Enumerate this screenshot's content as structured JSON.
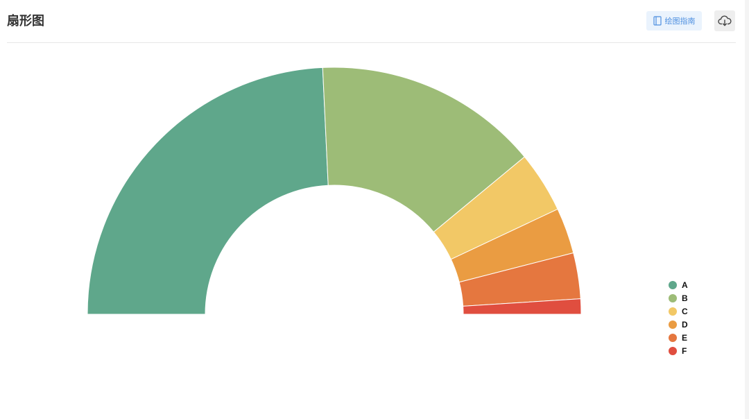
{
  "header": {
    "title": "扇形图",
    "guide_label": "绘图指南",
    "guide_icon": "book-icon",
    "download_icon": "cloud-download-icon"
  },
  "chart_data": {
    "type": "pie",
    "variant": "half-donut",
    "categories": [
      "A",
      "B",
      "C",
      "D",
      "E",
      "F"
    ],
    "values": [
      48.5,
      29.5,
      8.0,
      6.0,
      6.0,
      2.0
    ],
    "colors": [
      "#5fa78b",
      "#9dbc77",
      "#f2c866",
      "#ea9c42",
      "#e5773f",
      "#e04e3f"
    ],
    "legend_position": "right",
    "title": "",
    "xlabel": "",
    "ylabel": ""
  }
}
